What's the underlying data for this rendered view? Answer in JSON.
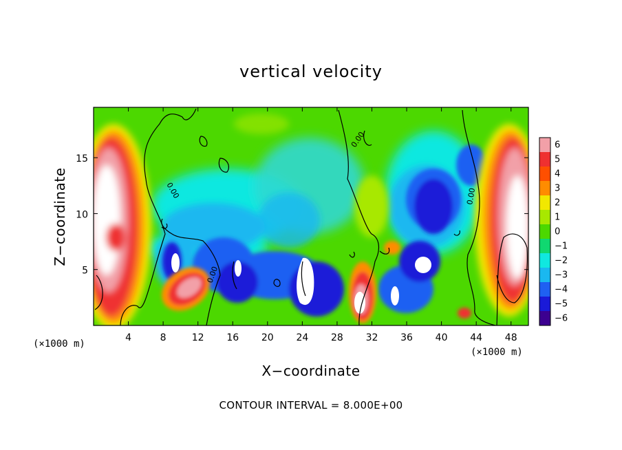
{
  "chart_data": {
    "type": "heatmap",
    "title": "vertical velocity",
    "xlabel": "X−coordinate",
    "ylabel": "Z−coordinate",
    "x_unit_label": "(×1000 m)",
    "y_unit_label": "(×1000 m)",
    "footer": "CONTOUR INTERVAL = 8.000E+00",
    "xlim": [
      0,
      50
    ],
    "ylim": [
      0,
      19.5
    ],
    "x_ticks": [
      4,
      8,
      12,
      16,
      20,
      24,
      28,
      32,
      36,
      40,
      44,
      48
    ],
    "x_tick_labels": [
      "4",
      "8",
      "12",
      "16",
      "20",
      "24",
      "28",
      "32",
      "36",
      "40",
      "44",
      "48"
    ],
    "y_ticks": [
      5,
      10,
      15
    ],
    "y_tick_labels": [
      "5",
      "10",
      "15"
    ],
    "colorbar": {
      "values": [
        6,
        5,
        4,
        3,
        2,
        1,
        0,
        -1,
        -2,
        -3,
        -4,
        -5,
        -6
      ],
      "labels": [
        "6",
        "5",
        "4",
        "3",
        "2",
        "1",
        "0",
        "−1",
        "−2",
        "−3",
        "−4",
        "−5",
        "−6"
      ],
      "colors": [
        "#f2a0a8",
        "#ef3030",
        "#ff4f00",
        "#ff8c00",
        "#f2e800",
        "#a8e800",
        "#4cd800",
        "#10d870",
        "#10e8e0",
        "#1ab8f0",
        "#1f60f2",
        "#1a1ad8",
        "#3c0090"
      ]
    },
    "contour_labels": [
      "0.00",
      "0.00",
      "0.00",
      "0.00"
    ],
    "features": [
      {
        "kind": "updraft",
        "x": [
          0,
          5
        ],
        "z": [
          1,
          18
        ],
        "value": 6
      },
      {
        "kind": "updraft",
        "x": [
          9,
          13
        ],
        "z": [
          1.5,
          6
        ],
        "value": 6
      },
      {
        "kind": "updraft",
        "x": [
          29,
          32
        ],
        "z": [
          1,
          5
        ],
        "value": 6
      },
      {
        "kind": "updraft",
        "x": [
          44,
          50
        ],
        "z": [
          1,
          18
        ],
        "value": 6
      },
      {
        "kind": "downdraft",
        "x": [
          13,
          29
        ],
        "z": [
          1,
          8
        ],
        "value": -5
      },
      {
        "kind": "downdraft",
        "x": [
          34,
          41
        ],
        "z": [
          2,
          14
        ],
        "value": -5
      },
      {
        "kind": "weak-downdraft",
        "x": [
          14,
          28
        ],
        "z": [
          8,
          15
        ],
        "value": -2
      }
    ]
  }
}
